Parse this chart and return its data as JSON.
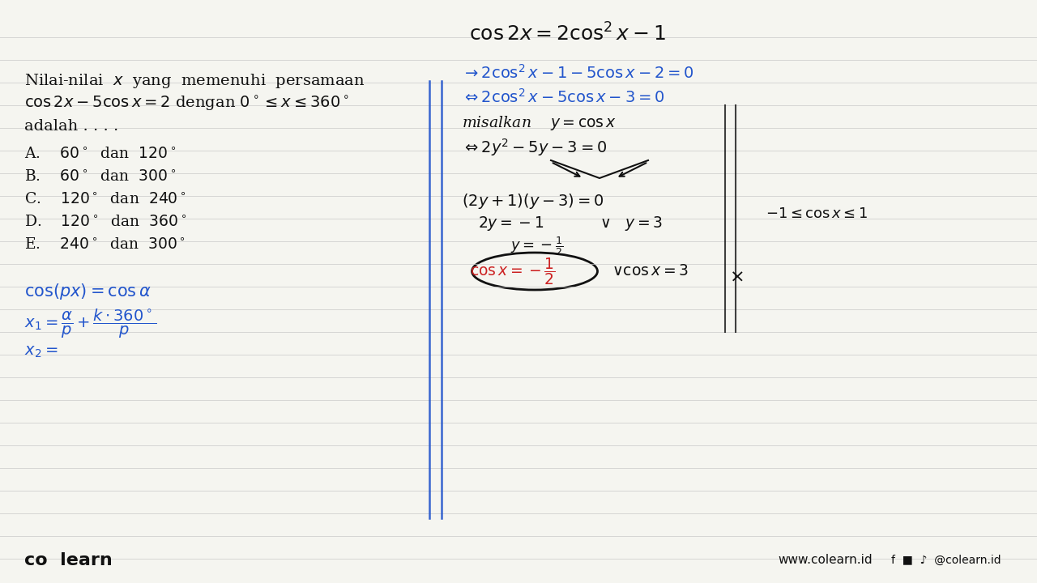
{
  "background_color": "#f5f5f0",
  "line_color": "#c8c8c8",
  "blue_ink": "#2255cc",
  "red_ink": "#cc2222",
  "black_ink": "#111111",
  "title_text": "$\\cos 2x = 2\\cos^2 x - 1$",
  "problem_line1": "Nilai-nilai  $x$  yang  memenuhi  persamaan",
  "problem_line2": "$\\cos 2x - 5\\cos x = 2$ dengan $0^\\circ \\leq x \\leq 360^\\circ$",
  "problem_line3": "adalah . . . .",
  "options": [
    "A.    $60^\\circ$  dan  $120^\\circ$",
    "B.    $60^\\circ$  dan  $300^\\circ$",
    "C.    $120^\\circ$  dan  $240^\\circ$",
    "D.    $120^\\circ$  dan  $360^\\circ$",
    "E.    $240^\\circ$  dan  $300^\\circ$"
  ],
  "step1": "$\\rightarrow 2\\cos^2 x - 1 - 5\\cos x - 2 = 0$",
  "step2": "$\\Leftrightarrow 2\\cos^2 x - 5\\cos x - 3 = 0$",
  "step3": "misalkan    $y = \\cos x$",
  "step4": "$\\Leftrightarrow  2y^2 - 5y - 3 = 0$",
  "step5": "$(2y + 1)(y - 3) = 0$",
  "step6a": "$2y = -1$",
  "step6b": "$\\vee$   $y = 3$",
  "step7": "$y = -\\frac{1}{2}$",
  "step8a": "$\\cos x = -\\dfrac{1}{2}$",
  "step8b": "$\\vee \\cos x = 3$",
  "step8c": "$\\times$",
  "constraint": "$-1 \\leq \\cos x \\leq 1$",
  "formula1": "$\\cos(px) = \\cos \\alpha$",
  "formula2": "$x_1 = \\dfrac{\\alpha}{p} + \\dfrac{k \\cdot 360^\\circ}{p}$",
  "formula3": "$x_2 = $",
  "footer_left": "co  learn",
  "footer_right": "www.colearn.id",
  "footer_social": "@colearn.id"
}
